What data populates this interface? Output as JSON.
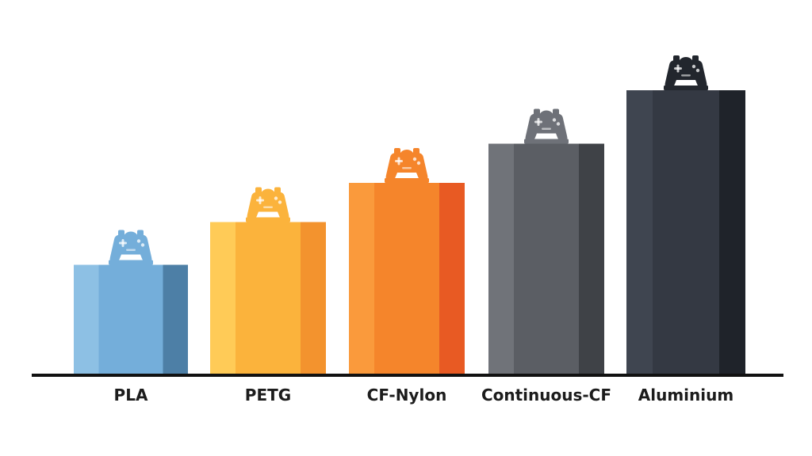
{
  "chart_data": {
    "type": "bar",
    "title": "",
    "xlabel": "",
    "ylabel": "",
    "categories": [
      "PLA",
      "PETG",
      "CF-Nylon",
      "Continuous-CF",
      "Aluminium"
    ],
    "values": [
      3.1,
      4.3,
      5.4,
      6.5,
      8.0
    ],
    "ylim": [
      0,
      10
    ],
    "grid": false,
    "legend": "none",
    "y_axis_shown": false,
    "marker_icon": "gamepad-icon",
    "colors": [
      {
        "light": "#8DC0E4",
        "mid": "#74AEDA",
        "dark": "#4D7FA6"
      },
      {
        "light": "#FFCB57",
        "mid": "#FBB33C",
        "dark": "#F3932E"
      },
      {
        "light": "#FA9A3C",
        "mid": "#F5852B",
        "dark": "#E85A23"
      },
      {
        "light": "#707379",
        "mid": "#5B5E64",
        "dark": "#3F4247"
      },
      {
        "light": "#3F4550",
        "mid": "#343943",
        "dark": "#1F232A"
      }
    ],
    "axis_color": "#111111"
  }
}
